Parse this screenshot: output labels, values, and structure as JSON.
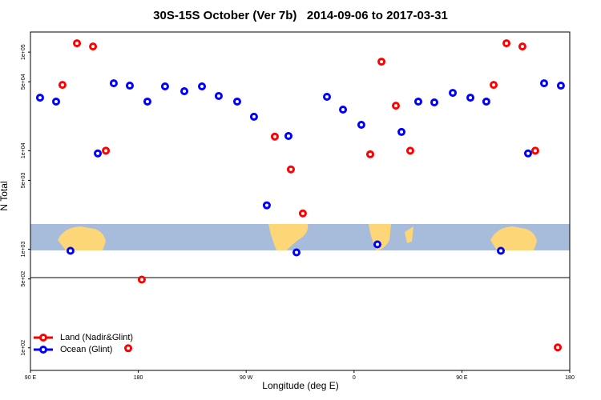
{
  "chart_data": {
    "type": "scatter",
    "title": "30S-15S October (Ver 7b)   2014-09-06 to 2017-03-31",
    "x_label": "Longitude (deg E)",
    "y_label": "N Total",
    "log_y": true,
    "legend": "bottom-left",
    "xlim": [
      90,
      540
    ],
    "xticks": [
      {
        "value": 90,
        "label": "90 E"
      },
      180,
      {
        "value": 270,
        "label": "90 W"
      },
      {
        "value": 360,
        "label": "0"
      },
      {
        "value": 450,
        "label": "90 E"
      },
      {
        "value": 540,
        "label": "180"
      }
    ],
    "ylim": [
      59,
      160000
    ],
    "yticks": [
      {
        "value": 100,
        "label": "1e+02"
      },
      {
        "value": 500,
        "label": "5e+02"
      },
      {
        "value": 1000,
        "label": "1e+03"
      },
      {
        "value": 5000,
        "label": "5e+03"
      },
      {
        "value": 10000,
        "label": "1e+04"
      },
      {
        "value": 50000,
        "label": "5e+04"
      },
      {
        "value": 100000,
        "label": "1e+05"
      }
    ],
    "series": [
      {
        "name": "Land (Nadir&Glint)",
        "color": "#ff0000",
        "x": [
          116.7,
          128.8,
          142.2,
          152.9,
          182.9,
          171.6,
          293.9,
          307.3,
          317.3,
          382.9,
          373.5,
          394.9,
          406.9,
          476.5,
          487.2,
          500.5,
          511.2,
          530.0
        ],
        "values": [
          46500,
          123000,
          114000,
          10000,
          492,
          99,
          13900,
          6460,
          2310,
          80000,
          9200,
          28600,
          10000,
          46500,
          123000,
          114000,
          10000,
          101
        ]
      },
      {
        "name": "Ocean (Glint)",
        "color": "#0000ff",
        "x": [
          98.0,
          111.4,
          123.4,
          146.2,
          159.5,
          172.9,
          187.6,
          202.3,
          218.4,
          233.1,
          247.1,
          262.5,
          276.5,
          287.2,
          305.3,
          312.0,
          337.4,
          350.8,
          366.1,
          379.5,
          399.6,
          413.6,
          427.0,
          442.4,
          457.1,
          470.4,
          482.5,
          505.2,
          518.6,
          532.6
        ],
        "values": [
          34500,
          31500,
          964,
          9380,
          48300,
          45700,
          31500,
          44900,
          40100,
          44900,
          35900,
          31500,
          22100,
          2790,
          14100,
          929,
          35200,
          26100,
          18300,
          1120,
          15500,
          31500,
          30900,
          38600,
          34500,
          31500,
          964,
          9380,
          48300,
          45700
        ]
      }
    ]
  }
}
